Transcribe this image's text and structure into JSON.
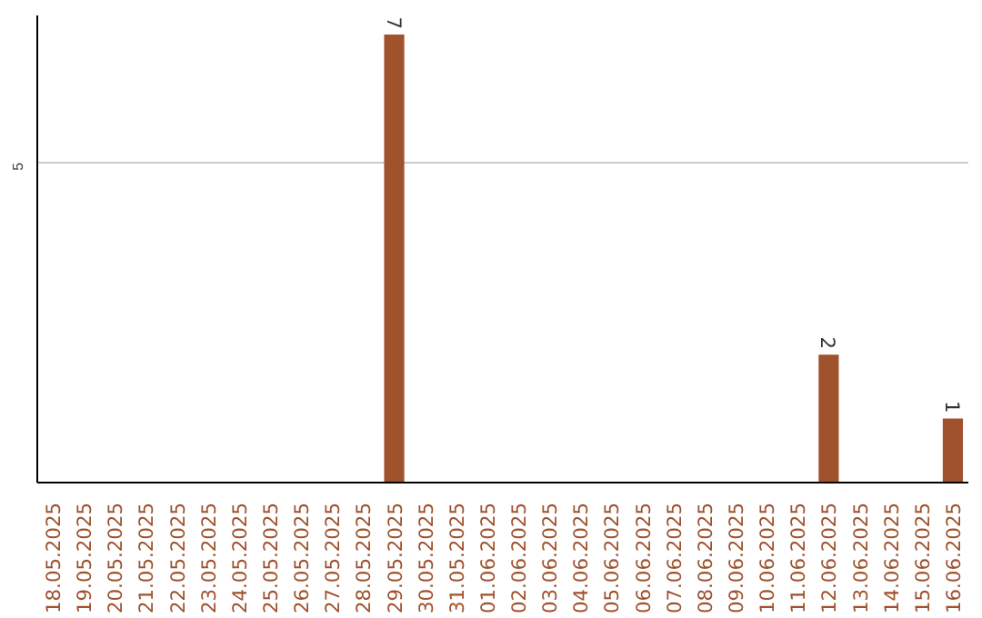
{
  "chart_data": {
    "type": "bar",
    "categories": [
      "18.05.2025",
      "19.05.2025",
      "20.05.2025",
      "21.05.2025",
      "22.05.2025",
      "23.05.2025",
      "24.05.2025",
      "25.05.2025",
      "26.05.2025",
      "27.05.2025",
      "28.05.2025",
      "29.05.2025",
      "30.05.2025",
      "31.05.2025",
      "01.06.2025",
      "02.06.2025",
      "03.06.2025",
      "04.06.2025",
      "05.06.2025",
      "06.06.2025",
      "07.06.2025",
      "08.06.2025",
      "09.06.2025",
      "10.06.2025",
      "11.06.2025",
      "12.06.2025",
      "13.06.2025",
      "14.06.2025",
      "15.06.2025",
      "16.06.2025"
    ],
    "values": [
      0,
      0,
      0,
      0,
      0,
      0,
      0,
      0,
      0,
      0,
      0,
      7,
      0,
      0,
      0,
      0,
      0,
      0,
      0,
      0,
      0,
      0,
      0,
      0,
      0,
      2,
      0,
      0,
      0,
      1
    ],
    "value_labels": [
      null,
      null,
      null,
      null,
      null,
      null,
      null,
      null,
      null,
      null,
      null,
      "7",
      null,
      null,
      null,
      null,
      null,
      null,
      null,
      null,
      null,
      null,
      null,
      null,
      null,
      "2",
      null,
      null,
      null,
      "1"
    ],
    "color": "#a0522d",
    "ylim": [
      0,
      7.3
    ],
    "yticks": [
      5
    ],
    "grid": "y"
  }
}
